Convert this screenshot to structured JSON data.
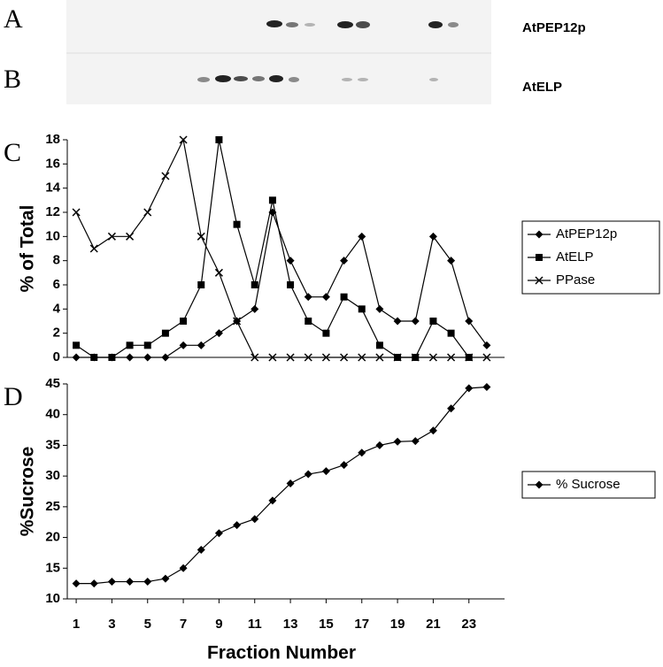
{
  "blots": {
    "a_letter": "A",
    "a_name": "AtPEP12p",
    "b_letter": "B",
    "b_name": "AtELP"
  },
  "chart_data": [
    {
      "type": "line",
      "panel": "C",
      "ylabel": "% of Total",
      "x": [
        1,
        2,
        3,
        4,
        5,
        6,
        7,
        8,
        9,
        10,
        11,
        12,
        13,
        14,
        15,
        16,
        17,
        18,
        19,
        20,
        21,
        22,
        23,
        24
      ],
      "xlim": [
        0.5,
        24.5
      ],
      "ylim": [
        0,
        18
      ],
      "yticks": [
        0,
        2,
        4,
        6,
        8,
        10,
        12,
        14,
        16,
        18
      ],
      "series": [
        {
          "name": "AtPEP12p",
          "color": "#000000",
          "marker": "diamond",
          "values": [
            0,
            0,
            0,
            0,
            0,
            0,
            1,
            1,
            2,
            3,
            4,
            12,
            8,
            5,
            5,
            8,
            10,
            4,
            3,
            3,
            10,
            8,
            3,
            1
          ]
        },
        {
          "name": "AtELP",
          "color": "#000000",
          "marker": "square",
          "values": [
            1,
            0,
            0,
            1,
            1,
            2,
            3,
            6,
            18,
            11,
            6,
            13,
            6,
            3,
            2,
            5,
            4,
            1,
            0,
            0,
            3,
            2,
            0,
            null
          ]
        },
        {
          "name": "PPase",
          "color": "#000000",
          "marker": "x",
          "values": [
            12,
            9,
            10,
            10,
            12,
            15,
            18,
            10,
            7,
            3,
            0,
            0,
            0,
            0,
            0,
            0,
            0,
            0,
            0,
            0,
            0,
            0,
            0,
            0
          ]
        }
      ]
    },
    {
      "type": "line",
      "panel": "D",
      "ylabel": "%Sucrose",
      "xlabel": "Fraction Number",
      "x": [
        1,
        2,
        3,
        4,
        5,
        6,
        7,
        8,
        9,
        10,
        11,
        12,
        13,
        14,
        15,
        16,
        17,
        18,
        19,
        20,
        21,
        22,
        23,
        24
      ],
      "xlim": [
        0.5,
        24.5
      ],
      "xticks": [
        1,
        3,
        5,
        7,
        9,
        11,
        13,
        15,
        17,
        19,
        21,
        23
      ],
      "ylim": [
        10,
        45
      ],
      "yticks": [
        10,
        15,
        20,
        25,
        30,
        35,
        40,
        45
      ],
      "series": [
        {
          "name": "% Sucrose",
          "color": "#000000",
          "marker": "diamond",
          "values": [
            12.5,
            12.5,
            12.8,
            12.8,
            12.8,
            13.3,
            15,
            18,
            20.7,
            22,
            23,
            26,
            28.8,
            30.3,
            30.8,
            31.8,
            33.8,
            35,
            35.6,
            35.7,
            37.4,
            41,
            44.3,
            44.5
          ]
        }
      ]
    }
  ]
}
